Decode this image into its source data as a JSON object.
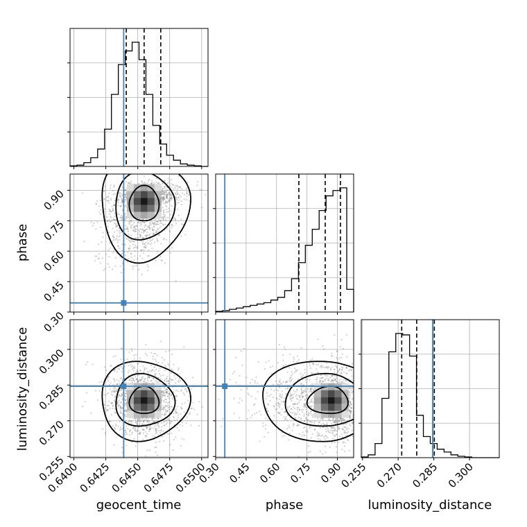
{
  "chart_data": {
    "type": "corner",
    "parameters": [
      {
        "name": "geocent_time",
        "label": "geocent_time",
        "range": [
          0.6397,
          0.6505
        ],
        "ticks": [
          0.64,
          0.6425,
          0.645,
          0.6475,
          0.65
        ],
        "tick_labels": [
          "0.6400",
          "0.6425",
          "0.6450",
          "0.6475",
          "0.6500"
        ],
        "truth": 0.6439,
        "quantiles": [
          0.6441,
          0.6455,
          0.6468
        ]
      },
      {
        "name": "phase",
        "label": "phase",
        "range": [
          0.3,
          0.98
        ],
        "ticks": [
          0.3,
          0.45,
          0.6,
          0.75,
          0.9
        ],
        "tick_labels": [
          "0.30",
          "0.45",
          "0.60",
          "0.75",
          "0.90"
        ],
        "truth": 0.345,
        "quantiles": [
          0.71,
          0.84,
          0.915
        ]
      },
      {
        "name": "luminosity_distance",
        "label": "luminosity_distance",
        "range": [
          0.2545,
          0.3125
        ],
        "ticks": [
          0.255,
          0.27,
          0.285,
          0.3
        ],
        "tick_labels": [
          "0.255",
          "0.270",
          "0.285",
          "0.300"
        ],
        "truth": 0.2845,
        "quantiles": [
          0.2715,
          0.2778,
          0.2852
        ]
      }
    ],
    "grid": true,
    "truth_color": "#4682b4",
    "hist_color": "#000000",
    "histograms": [
      {
        "param": "geocent_time",
        "bin_edges_range": [
          0.6397,
          0.6505
        ],
        "n_bins": 20,
        "counts": [
          0.5,
          1,
          3,
          7,
          14,
          30,
          58,
          82,
          93,
          100,
          86,
          58,
          33,
          18,
          9,
          5,
          2,
          1,
          0.5,
          0
        ]
      },
      {
        "param": "phase",
        "bin_edges_range": [
          0.3,
          0.98
        ],
        "n_bins": 20,
        "counts": [
          0.5,
          1,
          2,
          3,
          4,
          5,
          6,
          7,
          9,
          11,
          16,
          25,
          37,
          50,
          62,
          76,
          87,
          91,
          93,
          17
        ]
      },
      {
        "param": "luminosity_distance",
        "bin_edges_range": [
          0.2545,
          0.3125
        ],
        "n_bins": 20,
        "counts": [
          0.5,
          2,
          10,
          42,
          75,
          88,
          87,
          72,
          30,
          15,
          10,
          6,
          4,
          2,
          1,
          0.5,
          0,
          0,
          0,
          0
        ]
      }
    ],
    "joint_2d": [
      {
        "x": "geocent_time",
        "y": "phase",
        "mean": [
          0.6455,
          0.845
        ],
        "sd": [
          0.0012,
          0.085
        ],
        "rho": -0.35,
        "skew_y_low": true
      },
      {
        "x": "geocent_time",
        "y": "luminosity_distance",
        "mean": [
          0.6455,
          0.2785
        ],
        "sd": [
          0.0012,
          0.0065
        ],
        "rho": 0.05,
        "skew_y_low": false
      },
      {
        "x": "phase",
        "y": "luminosity_distance",
        "mean": [
          0.87,
          0.2785
        ],
        "sd": [
          0.085,
          0.0065
        ],
        "rho": 0.1,
        "skew_x_low": true
      }
    ]
  }
}
